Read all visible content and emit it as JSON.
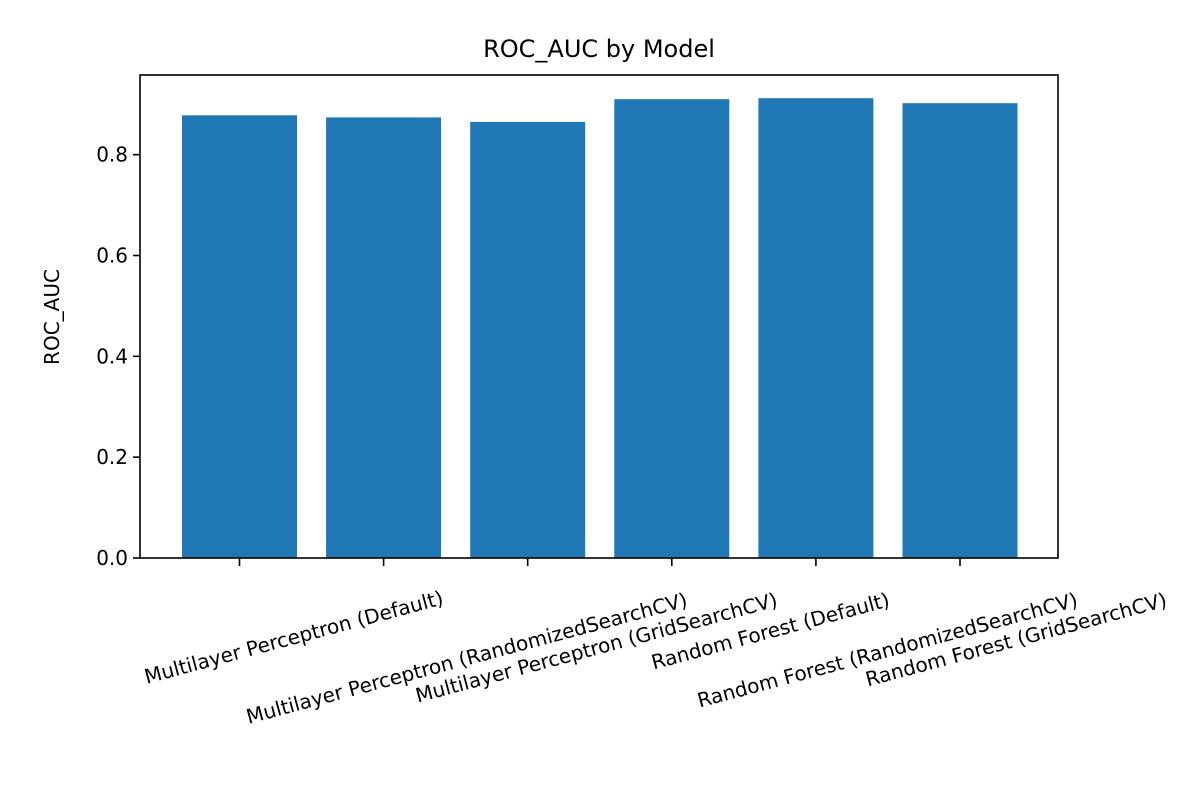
{
  "chart_data": {
    "type": "bar",
    "title": "ROC_AUC by Model",
    "xlabel": "",
    "ylabel": "ROC_AUC",
    "categories": [
      "Multilayer Perceptron (Default)",
      "Multilayer Perceptron (RandomizedSearchCV)",
      "Multilayer Perceptron (GridSearchCV)",
      "Random Forest (Default)",
      "Random Forest (RandomizedSearchCV)",
      "Random Forest (GridSearchCV)"
    ],
    "values": [
      0.878,
      0.874,
      0.865,
      0.91,
      0.912,
      0.902
    ],
    "ylim": [
      0,
      0.958
    ],
    "yticks": [
      "0.0",
      "0.2",
      "0.4",
      "0.6",
      "0.8"
    ],
    "bar_color": "#1f77b4",
    "grid": false
  }
}
